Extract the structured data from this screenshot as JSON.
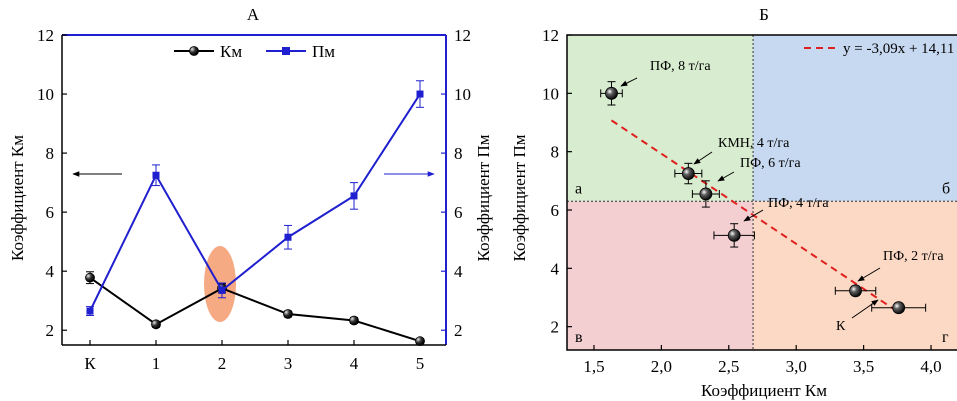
{
  "chart_data": [
    {
      "type": "line",
      "title": "А",
      "xlabel": "",
      "ylabel": "Коэффициент Км",
      "ylabel_right": "Коэффициент Пм",
      "categories": [
        "К",
        "1",
        "2",
        "3",
        "4",
        "5"
      ],
      "ylim": [
        1.5,
        12
      ],
      "yticks": [
        2,
        4,
        6,
        8,
        10,
        12
      ],
      "y2ticks": [
        2,
        4,
        6,
        8,
        10,
        12
      ],
      "legend_position": "top-center",
      "grid": false,
      "series": [
        {
          "name": "Км",
          "color": "#000000",
          "axis": "left",
          "values": [
            3.78,
            2.2,
            3.42,
            2.55,
            2.33,
            1.63
          ],
          "errors": [
            0.2,
            0.1,
            0.15,
            0.1,
            0.1,
            0.08
          ]
        },
        {
          "name": "Пм",
          "color": "#1f1fd0",
          "axis": "right",
          "values": [
            2.65,
            7.25,
            3.35,
            5.15,
            6.55,
            10.0
          ],
          "errors": [
            0.15,
            0.35,
            0.25,
            0.4,
            0.45,
            0.45
          ]
        }
      ],
      "highlight_color": "#f4a57c"
    },
    {
      "type": "scatter",
      "title": "Б",
      "xlabel": "Коэффициент Км",
      "ylabel": "Коэффициент Пм",
      "xlim": [
        1.3,
        4.2
      ],
      "ylim": [
        1.2,
        12
      ],
      "xticks": [
        "1,5",
        "2,0",
        "2,5",
        "3,0",
        "3,5",
        "4,0"
      ],
      "xtick_values": [
        1.5,
        2.0,
        2.5,
        3.0,
        3.5,
        4.0
      ],
      "yticks": [
        2,
        4,
        6,
        8,
        10,
        12
      ],
      "grid": false,
      "points": [
        {
          "x": 3.76,
          "y": 2.65,
          "xerr": 0.2,
          "yerr": 0.15,
          "label": "К"
        },
        {
          "x": 3.44,
          "y": 3.23,
          "xerr": 0.15,
          "yerr": 0.15,
          "label": "ПФ, 2 т/га"
        },
        {
          "x": 2.54,
          "y": 5.13,
          "xerr": 0.15,
          "yerr": 0.4,
          "label": "ПФ, 4 т/га"
        },
        {
          "x": 2.33,
          "y": 6.55,
          "xerr": 0.1,
          "yerr": 0.45,
          "label": "ПФ, 6 т/га"
        },
        {
          "x": 2.2,
          "y": 7.25,
          "xerr": 0.1,
          "yerr": 0.35,
          "label": "КМН, 4 т/га"
        },
        {
          "x": 1.63,
          "y": 10.0,
          "xerr": 0.08,
          "yerr": 0.4,
          "label": "ПФ, 8 т/га"
        }
      ],
      "regression": {
        "label": "y = -3,09x + 14,11",
        "slope": -3.09,
        "intercept": 14.11,
        "x_range": [
          1.63,
          3.76
        ],
        "color": "#e0201f"
      },
      "divider": {
        "x": 2.68,
        "y": 6.3
      },
      "quadrants": [
        {
          "name": "а",
          "color": "#d8eccf"
        },
        {
          "name": "б",
          "color": "#c7d9f1"
        },
        {
          "name": "в",
          "color": "#f3cfd2"
        },
        {
          "name": "г",
          "color": "#fbd9c4"
        }
      ]
    }
  ]
}
